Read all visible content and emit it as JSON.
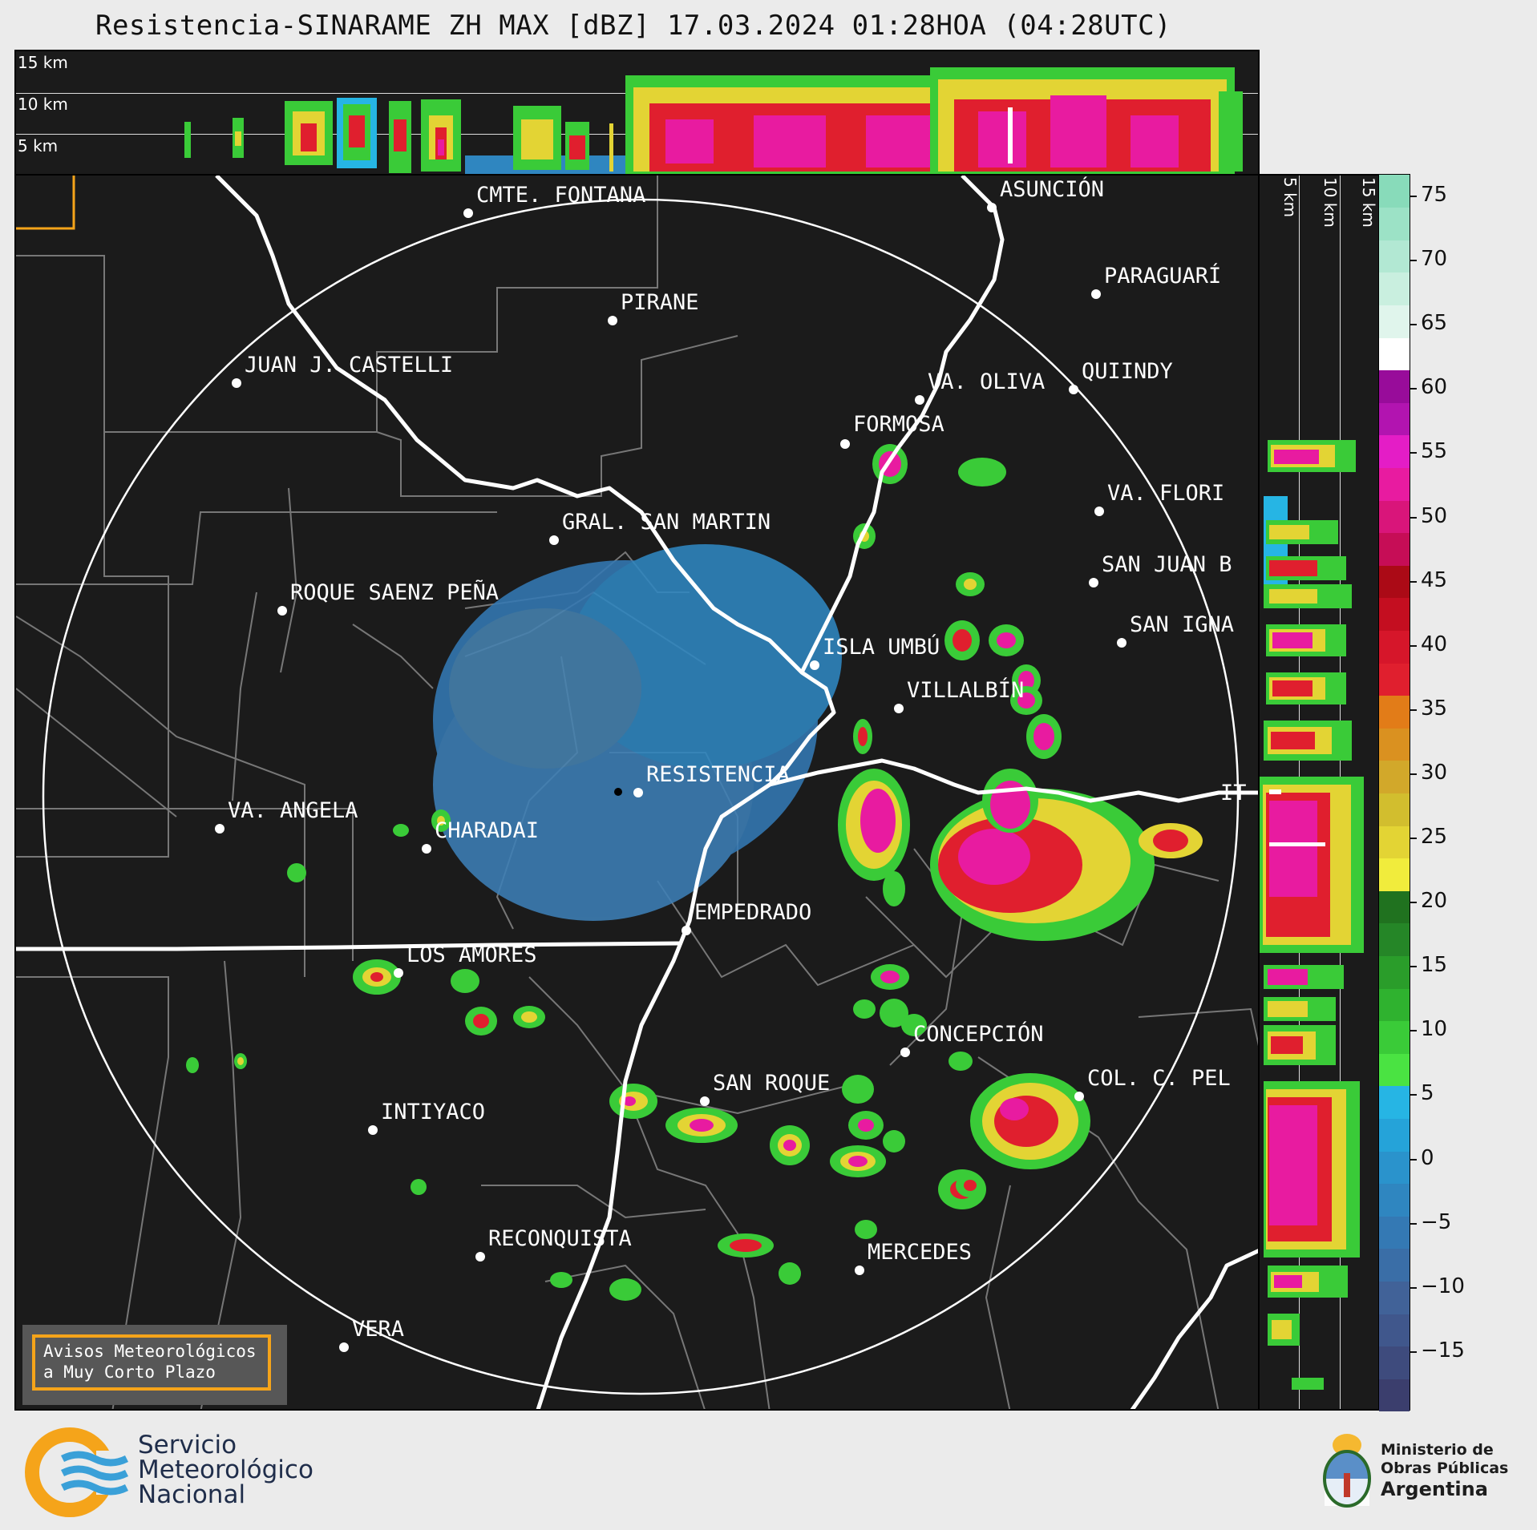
{
  "title": "Resistencia-SINARAME ZH MAX [dBZ] 17.03.2024 01:28HOA (04:28UTC)",
  "top_panel": {
    "height_labels": [
      "15 km",
      "10 km",
      "5 km"
    ]
  },
  "side_panel": {
    "height_labels": [
      "5 km",
      "10 km",
      "15 km"
    ]
  },
  "colorbar": {
    "ticks": [
      "75",
      "70",
      "65",
      "60",
      "55",
      "50",
      "45",
      "40",
      "35",
      "30",
      "25",
      "20",
      "15",
      "10",
      "5",
      "0",
      "−5",
      "−10",
      "−15"
    ],
    "colors": [
      "#3b3e6d",
      "#3e4b7d",
      "#40578c",
      "#416298",
      "#3a6ea7",
      "#3479b4",
      "#2f86c0",
      "#2a93cc",
      "#25a3d9",
      "#26b5e4",
      "#4ae342",
      "#3acb38",
      "#2fb22f",
      "#2a9d2a",
      "#258627",
      "#20721f",
      "#f1ec3c",
      "#e3d434",
      "#d2be2e",
      "#d2a82a",
      "#da9120",
      "#e27c18",
      "#e01f2e",
      "#d6162a",
      "#c40e20",
      "#ab0a16",
      "#c60d56",
      "#d9157a",
      "#e81ba0",
      "#e41dc6",
      "#b214b0",
      "#980c9a",
      "#ffffff",
      "#e0f5ec",
      "#c9efdf",
      "#b2e8d3",
      "#9ce2c6",
      "#88dbba"
    ]
  },
  "cities": [
    {
      "name": "CMTE. FONTANA",
      "label": "CMTE. FONTANA"
    },
    {
      "name": "ASUNCION",
      "label": "ASUNCIÓN"
    },
    {
      "name": "PARAGUARI",
      "label": "PARAGUARÍ"
    },
    {
      "name": "PIRANE",
      "label": "PIRANE"
    },
    {
      "name": "JUAN J. CASTELLI",
      "label": "JUAN J. CASTELLI"
    },
    {
      "name": "VA. OLIVA",
      "label": "VA. OLIVA"
    },
    {
      "name": "QUIINDY",
      "label": "QUIINDY"
    },
    {
      "name": "FORMOSA",
      "label": "FORMOSA"
    },
    {
      "name": "VA. FLORIDA",
      "label": "VA. FLORI"
    },
    {
      "name": "GRAL. SAN MARTIN",
      "label": "GRAL. SAN MARTIN"
    },
    {
      "name": "SAN JUAN B",
      "label": "SAN JUAN B"
    },
    {
      "name": "ROQUE SAENZ PENA",
      "label": "ROQUE SAENZ PEÑA"
    },
    {
      "name": "SAN IGNACIO",
      "label": "SAN IGNA"
    },
    {
      "name": "ISLA UMBU",
      "label": "ISLA UMBÚ"
    },
    {
      "name": "VILLALBIN",
      "label": "VILLALBÍN"
    },
    {
      "name": "RESISTENCIA",
      "label": "RESISTENCIA"
    },
    {
      "name": "VA. ANGELA",
      "label": "VA. ANGELA"
    },
    {
      "name": "CHARADAI",
      "label": "CHARADAI"
    },
    {
      "name": "ITA",
      "label": "IT"
    },
    {
      "name": "EMPEDRADO",
      "label": "EMPEDRADO"
    },
    {
      "name": "LOS AMORES",
      "label": "LOS AMORES"
    },
    {
      "name": "CONCEPCION",
      "label": "CONCEPCIÓN"
    },
    {
      "name": "SAN ROQUE",
      "label": "SAN ROQUE"
    },
    {
      "name": "COL. C. PELLEGRINI",
      "label": "COL. C. PEL"
    },
    {
      "name": "INTIYACO",
      "label": "INTIYACO"
    },
    {
      "name": "RECONQUISTA",
      "label": "RECONQUISTA"
    },
    {
      "name": "MERCEDES",
      "label": "MERCEDES"
    },
    {
      "name": "VERA",
      "label": "VERA"
    }
  ],
  "avisos": {
    "line1": "Avisos Meteorológicos",
    "line2": "a Muy Corto Plazo"
  },
  "smn_logo": {
    "line1": "Servicio",
    "line2": "Meteorológico",
    "line3": "Nacional"
  },
  "ministerio_logo": {
    "line1": "Ministerio de",
    "line2": "Obras Públicas",
    "line3": "Argentina"
  }
}
